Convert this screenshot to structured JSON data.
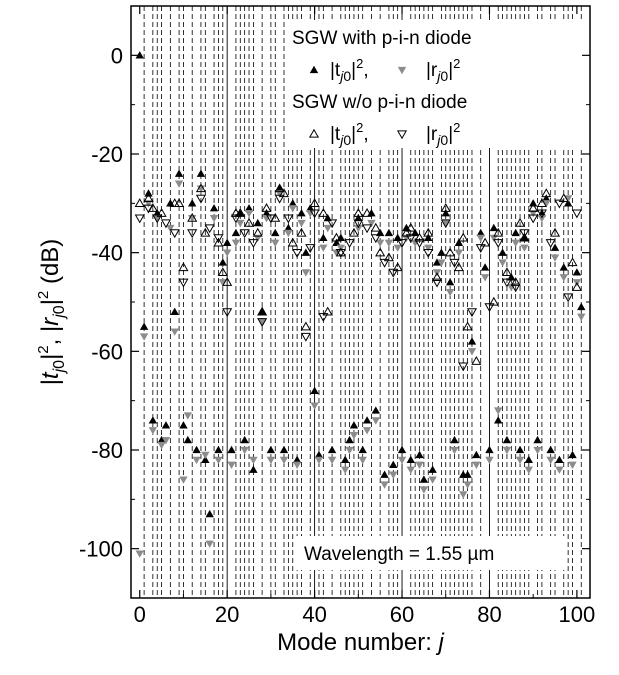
{
  "chart_data": {
    "type": "scatter",
    "xlabel": "Mode number: ",
    "xlabel_var": "j",
    "ylabel": "|t_j0|², |r_j0|² (dB)",
    "xlim": [
      -2,
      103
    ],
    "ylim": [
      -110,
      10
    ],
    "x_ticks": [
      0,
      20,
      40,
      60,
      80,
      100
    ],
    "x_tick_labels": [
      "0",
      "20",
      "40",
      "60",
      "80",
      "100"
    ],
    "y_ticks": [
      0,
      -20,
      -40,
      -60,
      -80,
      -100
    ],
    "y_tick_labels": [
      "0",
      "-20",
      "-40",
      "-60",
      "-80",
      "-100"
    ],
    "grid": "dashed vertical lines at mode positions, solid at 20/40/60/80",
    "dashed_grid_x": [
      1,
      3,
      4,
      5,
      7,
      9,
      10,
      12,
      14,
      15,
      17,
      18,
      19,
      22,
      23,
      24,
      25,
      26,
      28,
      30,
      31,
      33,
      34,
      35,
      36,
      37,
      39,
      41,
      42,
      44,
      46,
      47,
      48,
      49,
      50,
      51,
      53,
      55,
      57,
      58,
      59,
      62,
      63,
      64,
      65,
      66,
      67,
      69,
      70,
      71,
      72,
      73,
      74,
      75,
      76,
      78,
      82,
      83,
      84,
      85,
      86,
      87,
      88,
      89,
      91,
      92,
      94,
      95,
      97,
      98,
      99,
      101
    ],
    "solid_grid_x": [
      20,
      40,
      60,
      80
    ],
    "legend": {
      "group1_title": "SGW with p-i-n diode",
      "group2_title": "SGW w/o p-i-n diode",
      "t_label": "|t",
      "r_label": "|r",
      "sub": "j",
      "sub0": "0",
      "sup": "2",
      "sep": ",",
      "position": "top-right"
    },
    "annotation": {
      "prefix": "Wavelength = 1.55 ",
      "unit": "µm"
    },
    "colors": {
      "with_t": "#000000",
      "with_r": "#8c8c8c",
      "without_marker": "#000000"
    },
    "series": [
      {
        "name": "SGW with p-i-n diode, |t_j0|²",
        "marker": "filled-up-triangle",
        "x": [
          0,
          1,
          2,
          3,
          4,
          5,
          6,
          7,
          8,
          9,
          10,
          11,
          12,
          13,
          14,
          15,
          16,
          17,
          18,
          19,
          20,
          21,
          22,
          23,
          24,
          25,
          26,
          27,
          28,
          29,
          30,
          31,
          32,
          33,
          34,
          35,
          36,
          37,
          38,
          39,
          40,
          41,
          42,
          43,
          44,
          45,
          46,
          47,
          48,
          49,
          50,
          51,
          52,
          53,
          54,
          55,
          56,
          57,
          58,
          59,
          60,
          61,
          62,
          63,
          64,
          65,
          66,
          67,
          68,
          69,
          70,
          71,
          72,
          73,
          74,
          75,
          76,
          77,
          78,
          79,
          80,
          81,
          82,
          83,
          84,
          85,
          86,
          87,
          88,
          89,
          90,
          91,
          92,
          93,
          94,
          95,
          96,
          97,
          98,
          99,
          100,
          101
        ],
        "y": [
          0,
          -55,
          -28,
          -74,
          -32,
          -78,
          -75,
          -30,
          -52,
          -24,
          -75,
          -78,
          -30,
          -80,
          -24,
          -82,
          -93,
          -31,
          -80,
          -42,
          -38,
          -80,
          -36,
          -32,
          -78,
          -31,
          -84,
          -34,
          -52,
          -32,
          -80,
          -36,
          -27,
          -80,
          -35,
          -30,
          -82,
          -32,
          -40,
          -31,
          -68,
          -81,
          -37,
          -33,
          -80,
          -38,
          -37,
          -82,
          -78,
          -75,
          -33,
          -80,
          -74,
          -32,
          -72,
          -36,
          -85,
          -36,
          -83,
          -37,
          -80,
          -35,
          -82,
          -36,
          -81,
          -86,
          -37,
          -84,
          -42,
          -40,
          -32,
          -46,
          -78,
          -38,
          -85,
          -85,
          -58,
          -81,
          -36,
          -43,
          -80,
          -35,
          -74,
          -40,
          -78,
          -45,
          -36,
          -80,
          -37,
          -82,
          -30,
          -78,
          -32,
          -29,
          -80,
          -39,
          -82,
          -43,
          -30,
          -81,
          -44,
          -51
        ]
      },
      {
        "name": "SGW with p-i-n diode, |r_j0|²",
        "marker": "filled-down-triangle",
        "x": [
          0,
          1,
          2,
          3,
          4,
          5,
          6,
          7,
          8,
          9,
          10,
          11,
          12,
          13,
          14,
          15,
          16,
          17,
          18,
          19,
          20,
          21,
          22,
          23,
          24,
          25,
          26,
          27,
          28,
          29,
          30,
          31,
          32,
          33,
          34,
          35,
          36,
          37,
          38,
          39,
          40,
          41,
          42,
          43,
          44,
          45,
          46,
          47,
          48,
          49,
          50,
          51,
          52,
          53,
          54,
          55,
          56,
          57,
          58,
          59,
          60,
          61,
          62,
          63,
          64,
          65,
          66,
          67,
          68,
          69,
          70,
          71,
          72,
          73,
          74,
          75,
          76,
          77,
          78,
          79,
          80,
          81,
          82,
          83,
          84,
          85,
          86,
          87,
          88,
          89,
          90,
          91,
          92,
          93,
          94,
          95,
          96,
          97,
          98,
          99,
          100,
          101
        ],
        "y": [
          -101,
          -57,
          -30,
          -76,
          -33,
          -79,
          -78,
          -35,
          -56,
          -26,
          -86,
          -73,
          -33,
          -82,
          -27,
          -81,
          -99,
          -33,
          -82,
          -46,
          -40,
          -83,
          -38,
          -34,
          -80,
          -32,
          -82,
          -37,
          -54,
          -33,
          -82,
          -38,
          -28,
          -82,
          -36,
          -31,
          -83,
          -34,
          -44,
          -32,
          -71,
          -82,
          -39,
          -35,
          -82,
          -40,
          -39,
          -84,
          -80,
          -77,
          -35,
          -82,
          -76,
          -34,
          -74,
          -38,
          -87,
          -38,
          -85,
          -39,
          -82,
          -37,
          -84,
          -38,
          -83,
          -88,
          -39,
          -86,
          -44,
          -42,
          -34,
          -48,
          -80,
          -40,
          -89,
          -87,
          -60,
          -83,
          -37,
          -45,
          -82,
          -37,
          -72,
          -42,
          -80,
          -47,
          -38,
          -82,
          -39,
          -84,
          -32,
          -80,
          -33,
          -30,
          -82,
          -41,
          -84,
          -45,
          -29,
          -83,
          -46,
          -53
        ]
      },
      {
        "name": "SGW w/o p-i-n diode, |t_j0|²",
        "marker": "open-up-triangle",
        "x": [
          0,
          2,
          3,
          5,
          8,
          9,
          10,
          12,
          14,
          15,
          18,
          19,
          20,
          22,
          23,
          25,
          27,
          28,
          29,
          31,
          32,
          33,
          35,
          37,
          38,
          40,
          42,
          43,
          45,
          46,
          49,
          50,
          52,
          54,
          55,
          57,
          59,
          61,
          62,
          64,
          66,
          68,
          70,
          71,
          73,
          74,
          75,
          77,
          79,
          81,
          82,
          84,
          86,
          87,
          88,
          90,
          92,
          93,
          95,
          97,
          99,
          100
        ],
        "y": [
          -30,
          -29,
          -31,
          -32,
          -30,
          -30,
          -43,
          -33,
          -27,
          -36,
          -38,
          -44,
          -46,
          -32,
          -32,
          -34,
          -36,
          -52,
          -31,
          -33,
          -27,
          -28,
          -38,
          -36,
          -55,
          -30,
          -32,
          -52,
          -37,
          -40,
          -36,
          -32,
          -32,
          -35,
          -40,
          -41,
          -43,
          -36,
          -35,
          -37,
          -36,
          -45,
          -31,
          -40,
          -43,
          -37,
          -55,
          -62,
          -38,
          -50,
          -36,
          -44,
          -46,
          -34,
          -37,
          -31,
          -30,
          -28,
          -36,
          -29,
          -42,
          -47
        ]
      },
      {
        "name": "SGW w/o p-i-n diode, |r_j0|²",
        "marker": "open-down-triangle",
        "x": [
          0,
          2,
          4,
          6,
          8,
          10,
          12,
          14,
          16,
          18,
          20,
          22,
          24,
          26,
          28,
          30,
          32,
          34,
          36,
          38,
          39,
          40,
          42,
          44,
          46,
          48,
          50,
          52,
          54,
          56,
          58,
          60,
          62,
          64,
          66,
          68,
          70,
          72,
          74,
          76,
          78,
          80,
          82,
          84,
          86,
          88,
          90,
          92,
          94,
          96,
          98,
          100
        ],
        "y": [
          -33,
          -31,
          -33,
          -34,
          -36,
          -46,
          -36,
          -29,
          -35,
          -37,
          -52,
          -33,
          -36,
          -38,
          -54,
          -33,
          -29,
          -33,
          -40,
          -57,
          -39,
          -32,
          -53,
          -34,
          -40,
          -38,
          -34,
          -35,
          -37,
          -42,
          -44,
          -38,
          -37,
          -38,
          -40,
          -46,
          -34,
          -42,
          -63,
          -52,
          -39,
          -51,
          -38,
          -46,
          -47,
          -36,
          -33,
          -32,
          -38,
          -30,
          -49,
          -32
        ]
      }
    ]
  }
}
